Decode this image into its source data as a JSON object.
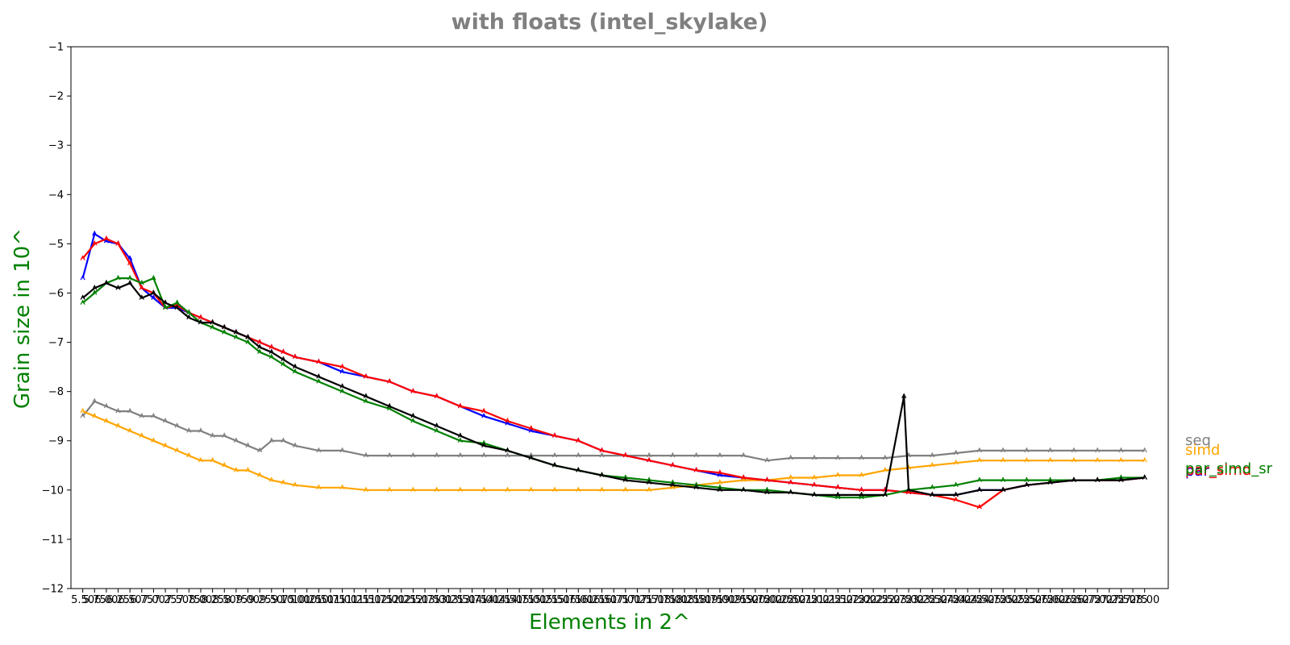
{
  "chart_data": {
    "type": "line",
    "title": "with floats  (intel_skylake)",
    "xlabel": "Elements in 2^",
    "ylabel": "Grain size in 10^",
    "ylim": [
      -12,
      -1
    ],
    "xlim": [
      5.25,
      28.5
    ],
    "yticks": [
      -1,
      -2,
      -3,
      -4,
      -5,
      -6,
      -7,
      -8,
      -9,
      -10,
      -11,
      -12
    ],
    "ytick_labels": [
      "−1",
      "−2",
      "−3",
      "−4",
      "−5",
      "−6",
      "−7",
      "−8",
      "−9",
      "−10",
      "−11",
      "−12"
    ],
    "xtick_labels": [
      "5.50",
      "5.75",
      "6.00",
      "6.25",
      "6.50",
      "6.75",
      "7.00",
      "7.25",
      "7.50",
      "7.75",
      "8.00",
      "8.25",
      "8.50",
      "8.75",
      "9.00",
      "9.25",
      "9.50",
      "9.75",
      "10.00",
      "10.25",
      "10.50",
      "10.75",
      "11.00",
      "11.25",
      "11.50",
      "11.75",
      "12.00",
      "12.25",
      "12.50",
      "12.75",
      "13.00",
      "13.25",
      "13.50",
      "13.75",
      "14.00",
      "14.25",
      "14.50",
      "14.75",
      "15.00",
      "15.25",
      "15.50",
      "15.75",
      "16.00",
      "16.25",
      "16.50",
      "16.75",
      "17.00",
      "17.25",
      "17.50",
      "17.75",
      "18.00",
      "18.25",
      "18.50",
      "18.75",
      "19.00",
      "19.25",
      "19.50",
      "19.75",
      "20.00",
      "20.25",
      "20.50",
      "20.75",
      "21.00",
      "21.25",
      "21.50",
      "21.75",
      "22.00",
      "22.25",
      "22.50",
      "22.75",
      "23.00",
      "23.25",
      "23.50",
      "23.75",
      "24.00",
      "24.25",
      "24.50",
      "24.75",
      "25.00",
      "25.25",
      "25.50",
      "25.75",
      "26.00",
      "26.25",
      "26.50",
      "26.75",
      "27.00",
      "27.25",
      "27.50",
      "27.75",
      "28.00"
    ],
    "legend_placement": "right",
    "grid": false,
    "colors": {
      "title": "#808080",
      "axis_labels": "#008000",
      "seq": "#808080",
      "simd": "#ffa500",
      "par": "#0000ff",
      "par_simd": "#ff0000",
      "par_simd_sr": "#008000",
      "extra": "#000000"
    },
    "series": [
      {
        "name": "seq",
        "color": "#808080",
        "x": [
          5.5,
          5.75,
          6.0,
          6.25,
          6.5,
          6.75,
          7.0,
          7.25,
          7.5,
          7.75,
          8.0,
          8.25,
          8.5,
          8.75,
          9.0,
          9.25,
          9.5,
          9.75,
          10.0,
          10.5,
          11.0,
          11.5,
          12.0,
          12.5,
          13.0,
          13.5,
          14.0,
          14.5,
          15.0,
          15.5,
          16.0,
          16.5,
          17.0,
          17.5,
          18.0,
          18.5,
          19.0,
          19.5,
          20.0,
          20.5,
          21.0,
          21.5,
          22.0,
          22.5,
          23.0,
          23.5,
          24.0,
          24.5,
          25.0,
          25.5,
          26.0,
          26.5,
          27.0,
          27.5,
          28.0
        ],
        "y": [
          -8.5,
          -8.2,
          -8.3,
          -8.4,
          -8.4,
          -8.5,
          -8.5,
          -8.6,
          -8.7,
          -8.8,
          -8.8,
          -8.9,
          -8.9,
          -9.0,
          -9.1,
          -9.2,
          -9.0,
          -9.0,
          -9.1,
          -9.2,
          -9.2,
          -9.3,
          -9.3,
          -9.3,
          -9.3,
          -9.3,
          -9.3,
          -9.3,
          -9.3,
          -9.3,
          -9.3,
          -9.3,
          -9.3,
          -9.3,
          -9.3,
          -9.3,
          -9.3,
          -9.3,
          -9.4,
          -9.35,
          -9.35,
          -9.35,
          -9.35,
          -9.35,
          -9.3,
          -9.3,
          -9.25,
          -9.2,
          -9.2,
          -9.2,
          -9.2,
          -9.2,
          -9.2,
          -9.2,
          -9.2
        ]
      },
      {
        "name": "simd",
        "color": "#ffa500",
        "x": [
          5.5,
          5.75,
          6.0,
          6.25,
          6.5,
          6.75,
          7.0,
          7.25,
          7.5,
          7.75,
          8.0,
          8.25,
          8.5,
          8.75,
          9.0,
          9.25,
          9.5,
          9.75,
          10.0,
          10.5,
          11.0,
          11.5,
          12.0,
          12.5,
          13.0,
          13.5,
          14.0,
          14.5,
          15.0,
          15.5,
          16.0,
          16.5,
          17.0,
          17.5,
          18.0,
          18.5,
          19.0,
          19.5,
          20.0,
          20.5,
          21.0,
          21.5,
          22.0,
          22.5,
          23.0,
          23.5,
          24.0,
          24.5,
          25.0,
          25.5,
          26.0,
          26.5,
          27.0,
          27.5,
          28.0
        ],
        "y": [
          -8.4,
          -8.5,
          -8.6,
          -8.7,
          -8.8,
          -8.9,
          -9.0,
          -9.1,
          -9.2,
          -9.3,
          -9.4,
          -9.4,
          -9.5,
          -9.6,
          -9.6,
          -9.7,
          -9.8,
          -9.85,
          -9.9,
          -9.95,
          -9.95,
          -10.0,
          -10.0,
          -10.0,
          -10.0,
          -10.0,
          -10.0,
          -10.0,
          -10.0,
          -10.0,
          -10.0,
          -10.0,
          -10.0,
          -10.0,
          -9.95,
          -9.9,
          -9.85,
          -9.8,
          -9.8,
          -9.75,
          -9.75,
          -9.7,
          -9.7,
          -9.6,
          -9.55,
          -9.5,
          -9.45,
          -9.4,
          -9.4,
          -9.4,
          -9.4,
          -9.4,
          -9.4,
          -9.4,
          -9.4
        ]
      },
      {
        "name": "par",
        "color": "#0000ff",
        "x": [
          5.5,
          5.75,
          6.0,
          6.25,
          6.5,
          6.75,
          7.0,
          7.25,
          7.5,
          7.75,
          8.0,
          8.25,
          8.5,
          8.75,
          9.0,
          9.25,
          9.5,
          9.75,
          10.0,
          10.5,
          11.0,
          11.5,
          12.0,
          12.5,
          13.0,
          13.5,
          14.0,
          14.5,
          15.0,
          15.5,
          16.0,
          16.5,
          17.0,
          17.5,
          18.0,
          18.5,
          19.0,
          19.5,
          20.0,
          20.5,
          21.0,
          21.5,
          22.0,
          22.5,
          23.0,
          23.5,
          24.0,
          24.5,
          25.0,
          25.5,
          26.0,
          26.5,
          27.0,
          27.5,
          28.0
        ],
        "y": [
          -5.7,
          -4.8,
          -4.95,
          -5.0,
          -5.3,
          -5.9,
          -6.1,
          -6.3,
          -6.3,
          -6.4,
          -6.5,
          -6.6,
          -6.7,
          -6.8,
          -6.9,
          -7.0,
          -7.1,
          -7.2,
          -7.3,
          -7.4,
          -7.6,
          -7.7,
          -7.8,
          -8.0,
          -8.1,
          -8.3,
          -8.5,
          -8.65,
          -8.8,
          -8.9,
          -9.0,
          -9.2,
          -9.3,
          -9.4,
          -9.5,
          -9.6,
          -9.7,
          -9.75,
          -9.8,
          -9.85,
          -9.9,
          -9.95,
          -10.0,
          -10.0,
          -10.05,
          -10.1,
          -10.1,
          -10.0,
          -10.0,
          -9.9,
          -9.85,
          -9.8,
          -9.8,
          -9.8,
          -9.75
        ]
      },
      {
        "name": "par_simd",
        "color": "#ff0000",
        "x": [
          5.5,
          5.75,
          6.0,
          6.25,
          6.5,
          6.75,
          7.0,
          7.25,
          7.5,
          7.75,
          8.0,
          8.25,
          8.5,
          8.75,
          9.0,
          9.25,
          9.5,
          9.75,
          10.0,
          10.5,
          11.0,
          11.5,
          12.0,
          12.5,
          13.0,
          13.5,
          14.0,
          14.5,
          15.0,
          15.5,
          16.0,
          16.5,
          17.0,
          17.5,
          18.0,
          18.5,
          19.0,
          19.5,
          20.0,
          20.5,
          21.0,
          21.5,
          22.0,
          22.5,
          23.0,
          23.5,
          24.0,
          24.5,
          25.0,
          25.5,
          26.0,
          26.5,
          27.0,
          27.5,
          28.0
        ],
        "y": [
          -5.3,
          -5.0,
          -4.9,
          -5.0,
          -5.4,
          -5.9,
          -6.0,
          -6.3,
          -6.25,
          -6.4,
          -6.5,
          -6.6,
          -6.7,
          -6.8,
          -6.9,
          -7.0,
          -7.1,
          -7.2,
          -7.3,
          -7.4,
          -7.5,
          -7.7,
          -7.8,
          -8.0,
          -8.1,
          -8.3,
          -8.4,
          -8.6,
          -8.75,
          -8.9,
          -9.0,
          -9.2,
          -9.3,
          -9.4,
          -9.5,
          -9.6,
          -9.65,
          -9.75,
          -9.8,
          -9.85,
          -9.9,
          -9.95,
          -10.0,
          -10.0,
          -10.05,
          -10.1,
          -10.2,
          -10.35,
          -10.0,
          -9.9,
          -9.85,
          -9.8,
          -9.8,
          -9.8,
          -9.75
        ]
      },
      {
        "name": "par_simd_sr",
        "color": "#008000",
        "x": [
          5.5,
          5.75,
          6.0,
          6.25,
          6.5,
          6.75,
          7.0,
          7.25,
          7.5,
          7.75,
          8.0,
          8.25,
          8.5,
          8.75,
          9.0,
          9.25,
          9.5,
          9.75,
          10.0,
          10.5,
          11.0,
          11.5,
          12.0,
          12.5,
          13.0,
          13.5,
          14.0,
          14.5,
          15.0,
          15.5,
          16.0,
          16.5,
          17.0,
          17.5,
          18.0,
          18.5,
          19.0,
          19.5,
          20.0,
          20.5,
          21.0,
          21.5,
          22.0,
          22.5,
          23.0,
          23.5,
          24.0,
          24.5,
          25.0,
          25.5,
          26.0,
          26.5,
          27.0,
          27.5,
          28.0
        ],
        "y": [
          -6.2,
          -6.0,
          -5.8,
          -5.7,
          -5.7,
          -5.8,
          -5.7,
          -6.3,
          -6.2,
          -6.4,
          -6.6,
          -6.7,
          -6.8,
          -6.9,
          -7.0,
          -7.2,
          -7.3,
          -7.45,
          -7.6,
          -7.8,
          -8.0,
          -8.2,
          -8.35,
          -8.6,
          -8.8,
          -9.0,
          -9.05,
          -9.2,
          -9.35,
          -9.5,
          -9.6,
          -9.7,
          -9.75,
          -9.8,
          -9.85,
          -9.9,
          -9.95,
          -10.0,
          -10.0,
          -10.05,
          -10.1,
          -10.15,
          -10.15,
          -10.1,
          -10.0,
          -9.95,
          -9.9,
          -9.8,
          -9.8,
          -9.8,
          -9.8,
          -9.8,
          -9.8,
          -9.75,
          -9.75
        ]
      },
      {
        "name": "",
        "color": "#000000",
        "x": [
          5.5,
          5.75,
          6.0,
          6.25,
          6.5,
          6.75,
          7.0,
          7.25,
          7.5,
          7.75,
          8.0,
          8.25,
          8.5,
          8.75,
          9.0,
          9.25,
          9.5,
          9.75,
          10.0,
          10.5,
          11.0,
          11.5,
          12.0,
          12.5,
          13.0,
          13.5,
          14.0,
          14.5,
          15.0,
          15.5,
          16.0,
          16.5,
          17.0,
          17.5,
          18.0,
          18.5,
          19.0,
          19.5,
          20.0,
          20.5,
          21.0,
          21.5,
          22.0,
          22.5,
          22.9,
          23.0,
          23.5,
          24.0,
          24.5,
          25.0,
          25.5,
          26.0,
          26.5,
          27.0,
          27.5,
          28.0
        ],
        "y": [
          -6.1,
          -5.9,
          -5.8,
          -5.9,
          -5.8,
          -6.1,
          -6.0,
          -6.2,
          -6.3,
          -6.5,
          -6.6,
          -6.6,
          -6.7,
          -6.8,
          -6.9,
          -7.1,
          -7.2,
          -7.35,
          -7.5,
          -7.7,
          -7.9,
          -8.1,
          -8.3,
          -8.5,
          -8.7,
          -8.9,
          -9.1,
          -9.2,
          -9.35,
          -9.5,
          -9.6,
          -9.7,
          -9.8,
          -9.85,
          -9.9,
          -9.95,
          -10.0,
          -10.0,
          -10.05,
          -10.05,
          -10.1,
          -10.1,
          -10.1,
          -10.1,
          -8.1,
          -10.0,
          -10.1,
          -10.1,
          -10.0,
          -10.0,
          -9.9,
          -9.85,
          -9.8,
          -9.8,
          -9.8,
          -9.75
        ]
      }
    ],
    "legend": [
      {
        "name": "seq",
        "color": "#808080"
      },
      {
        "name": "simd",
        "color": "#ffa500"
      },
      {
        "name": "par",
        "color": "#0000ff"
      },
      {
        "name": "par_simd",
        "color": "#ff0000"
      },
      {
        "name": "par_simd_sr",
        "color": "#008000"
      }
    ]
  }
}
